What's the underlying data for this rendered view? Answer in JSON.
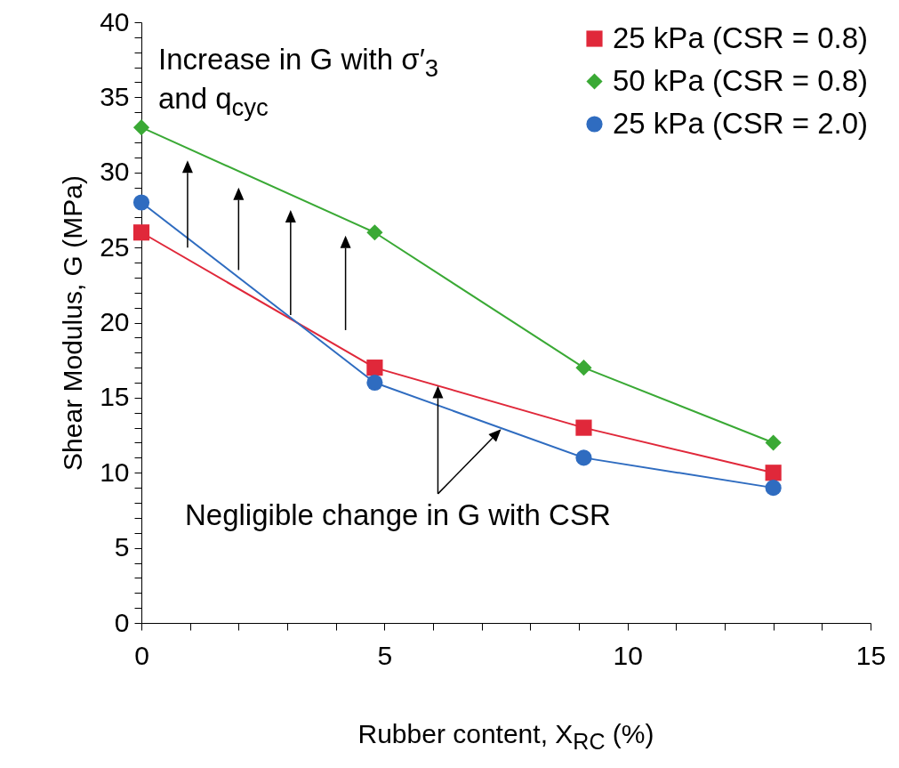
{
  "chart_data": {
    "type": "line",
    "xlabel": "Rubber content, X$_{RC}$ (%)",
    "ylabel": "Shear Modulus, G (MPa)",
    "x": [
      0,
      4.8,
      9.1,
      13
    ],
    "series": [
      {
        "name": "25 kPa (CSR = 0.8)",
        "color": "#e0283a",
        "marker": "square",
        "values": [
          26,
          17,
          13,
          10
        ]
      },
      {
        "name": "50 kPa (CSR = 0.8)",
        "color": "#3aa935",
        "marker": "diamond",
        "values": [
          33,
          26,
          17,
          12
        ]
      },
      {
        "name": "25 kPa (CSR = 2.0)",
        "color": "#2f6cc0",
        "marker": "circle",
        "values": [
          28,
          16,
          11,
          9
        ]
      }
    ],
    "xlim": [
      0,
      15
    ],
    "xticks": [
      0,
      {
        "value": 1,
        "label": null
      },
      {
        "value": 2,
        "label": null
      },
      {
        "value": 3,
        "label": null
      },
      {
        "value": 4,
        "label": null
      },
      5,
      {
        "value": 6,
        "label": null
      },
      {
        "value": 7,
        "label": null
      },
      {
        "value": 8,
        "label": null
      },
      {
        "value": 9,
        "label": null
      },
      10,
      {
        "value": 11,
        "label": null
      },
      {
        "value": 12,
        "label": null
      },
      {
        "value": 13,
        "label": null
      },
      {
        "value": 14,
        "label": null
      },
      15
    ],
    "ylim": [
      0,
      40
    ],
    "yticks": [
      0,
      {
        "value": 1,
        "label": null
      },
      {
        "value": 2,
        "label": null
      },
      {
        "value": 3,
        "label": null
      },
      {
        "value": 4,
        "label": null
      },
      5,
      {
        "value": 6,
        "label": null
      },
      {
        "value": 7,
        "label": null
      },
      {
        "value": 8,
        "label": null
      },
      {
        "value": 9,
        "label": null
      },
      10,
      {
        "value": 11,
        "label": null
      },
      {
        "value": 12,
        "label": null
      },
      {
        "value": 13,
        "label": null
      },
      {
        "value": 14,
        "label": null
      },
      15,
      {
        "value": 16,
        "label": null
      },
      {
        "value": 17,
        "label": null
      },
      {
        "value": 18,
        "label": null
      },
      {
        "value": 19,
        "label": null
      },
      20,
      {
        "value": 21,
        "label": null
      },
      {
        "value": 22,
        "label": null
      },
      {
        "value": 23,
        "label": null
      },
      {
        "value": 24,
        "label": null
      },
      25,
      {
        "value": 26,
        "label": null
      },
      {
        "value": 27,
        "label": null
      },
      {
        "value": 28,
        "label": null
      },
      {
        "value": 29,
        "label": null
      },
      30,
      {
        "value": 31,
        "label": null
      },
      {
        "value": 32,
        "label": null
      },
      {
        "value": 33,
        "label": null
      },
      {
        "value": 34,
        "label": null
      },
      35,
      {
        "value": 36,
        "label": null
      },
      {
        "value": 37,
        "label": null
      },
      {
        "value": 38,
        "label": null
      },
      {
        "value": 39,
        "label": null
      },
      40
    ],
    "grid": false,
    "legend": "top right",
    "annotations": [
      "Increase in G with σ′$_{3}$ and q$_{cyc}$",
      "Negligible change in G with CSR"
    ]
  }
}
